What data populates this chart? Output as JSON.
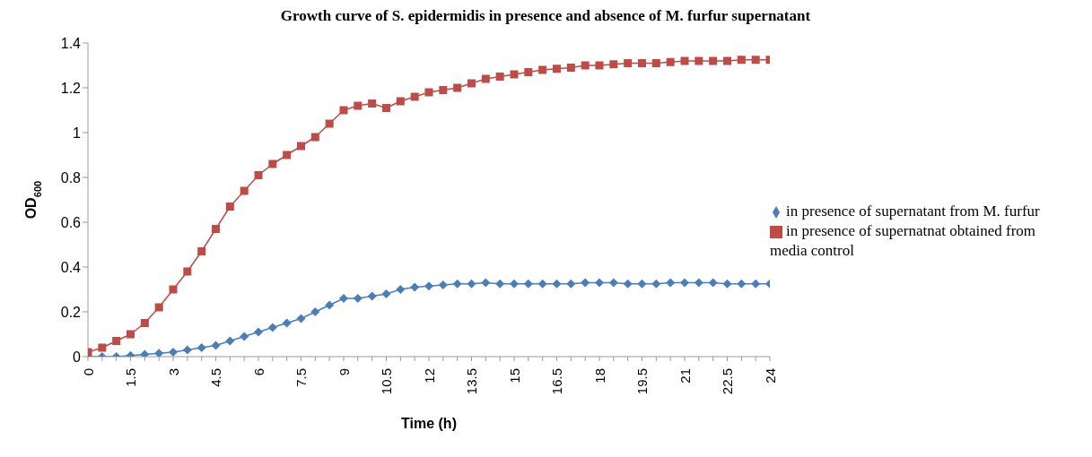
{
  "chart_data": {
    "type": "line",
    "title": "Growth curve of S. epidermidis in presence and absence of M. furfur supernatant",
    "xlabel": "Time (h)",
    "ylabel": "OD$_{600}$",
    "x": [
      0,
      0.5,
      1,
      1.5,
      2,
      2.5,
      3,
      3.5,
      4,
      4.5,
      5,
      5.5,
      6,
      6.5,
      7,
      7.5,
      8,
      8.5,
      9,
      9.5,
      10,
      10.5,
      11,
      11.5,
      12,
      12.5,
      13,
      13.5,
      14,
      14.5,
      15,
      15.5,
      16,
      16.5,
      17,
      17.5,
      18,
      18.5,
      19,
      19.5,
      20,
      20.5,
      21,
      21.5,
      22,
      22.5,
      23,
      23.5,
      24
    ],
    "series": [
      {
        "name": "in presence of supernatant from M. furfur",
        "color": "#4a7ebb",
        "marker": "diamond",
        "values": [
          0,
          0,
          0,
          0.005,
          0.01,
          0.015,
          0.02,
          0.03,
          0.04,
          0.05,
          0.07,
          0.09,
          0.11,
          0.13,
          0.15,
          0.17,
          0.2,
          0.23,
          0.26,
          0.26,
          0.27,
          0.28,
          0.3,
          0.31,
          0.315,
          0.32,
          0.325,
          0.325,
          0.33,
          0.325,
          0.325,
          0.325,
          0.325,
          0.325,
          0.325,
          0.33,
          0.33,
          0.33,
          0.325,
          0.325,
          0.325,
          0.33,
          0.33,
          0.33,
          0.33,
          0.325,
          0.325,
          0.325,
          0.325
        ]
      },
      {
        "name": "in presence of supernatnat obtained from media control",
        "color": "#be4b48",
        "marker": "square",
        "values": [
          0.02,
          0.04,
          0.07,
          0.1,
          0.15,
          0.22,
          0.3,
          0.38,
          0.47,
          0.57,
          0.67,
          0.74,
          0.81,
          0.86,
          0.9,
          0.94,
          0.98,
          1.04,
          1.1,
          1.12,
          1.13,
          1.11,
          1.14,
          1.16,
          1.18,
          1.19,
          1.2,
          1.22,
          1.24,
          1.25,
          1.26,
          1.27,
          1.28,
          1.285,
          1.29,
          1.3,
          1.3,
          1.305,
          1.31,
          1.31,
          1.31,
          1.315,
          1.32,
          1.32,
          1.32,
          1.32,
          1.325,
          1.325,
          1.325
        ]
      }
    ],
    "xlim": [
      0,
      24
    ],
    "xticks": [
      0,
      {
        "value": 0.5,
        "label": null
      },
      {
        "value": 1,
        "label": null
      },
      1.5,
      {
        "value": 2,
        "label": null
      },
      {
        "value": 2.5,
        "label": null
      },
      3,
      {
        "value": 3.5,
        "label": null
      },
      {
        "value": 4,
        "label": null
      },
      4.5,
      {
        "value": 5,
        "label": null
      },
      {
        "value": 5.5,
        "label": null
      },
      6,
      {
        "value": 6.5,
        "label": null
      },
      {
        "value": 7,
        "label": null
      },
      7.5,
      {
        "value": 8,
        "label": null
      },
      {
        "value": 8.5,
        "label": null
      },
      9,
      {
        "value": 9.5,
        "label": null
      },
      {
        "value": 10,
        "label": null
      },
      10.5,
      {
        "value": 11,
        "label": null
      },
      {
        "value": 11.5,
        "label": null
      },
      12,
      {
        "value": 12.5,
        "label": null
      },
      {
        "value": 13,
        "label": null
      },
      13.5,
      {
        "value": 14,
        "label": null
      },
      {
        "value": 14.5,
        "label": null
      },
      15,
      {
        "value": 15.5,
        "label": null
      },
      {
        "value": 16,
        "label": null
      },
      16.5,
      {
        "value": 17,
        "label": null
      },
      {
        "value": 17.5,
        "label": null
      },
      18,
      {
        "value": 18.5,
        "label": null
      },
      {
        "value": 19,
        "label": null
      },
      19.5,
      {
        "value": 20,
        "label": null
      },
      {
        "value": 20.5,
        "label": null
      },
      21,
      {
        "value": 21.5,
        "label": null
      },
      {
        "value": 22,
        "label": null
      },
      22.5,
      {
        "value": 23,
        "label": null
      },
      {
        "value": 23.5,
        "label": null
      },
      24
    ],
    "ylim": [
      0,
      1.4
    ],
    "yticks": [
      0,
      0.2,
      0.4,
      0.6,
      0.8,
      1,
      1.2,
      1.4
    ],
    "grid": false,
    "legend": "right",
    "line_style": "solid"
  }
}
